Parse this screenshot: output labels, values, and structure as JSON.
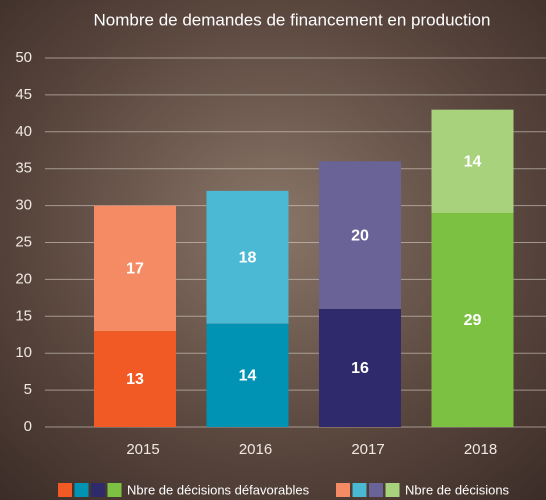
{
  "chart_data": {
    "type": "stacked-bar",
    "title": "Nombre de demandes de financement en production",
    "categories": [
      "2015",
      "2016",
      "2017",
      "2018"
    ],
    "series": [
      {
        "name": "Nbre de décisions défavorables",
        "colors": [
          "#f15a24",
          "#0093b4",
          "#2e2a6b",
          "#7dc142"
        ],
        "values": [
          13,
          14,
          16,
          29
        ]
      },
      {
        "name": "Nbre de décisions",
        "colors": [
          "#f58b65",
          "#4bb8d4",
          "#6a6398",
          "#a8d37c"
        ],
        "values": [
          17,
          18,
          20,
          14
        ]
      }
    ],
    "ylim": [
      0,
      50
    ],
    "yticks": [
      0,
      5,
      10,
      15,
      20,
      25,
      30,
      35,
      40,
      45,
      50
    ],
    "grid": true
  }
}
